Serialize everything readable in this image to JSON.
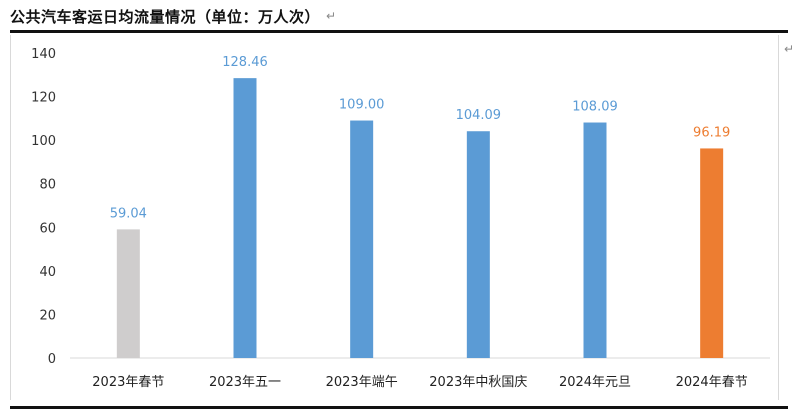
{
  "document": {
    "title": "公共汽车客运日均流量情况（单位：万人次）",
    "paragraph_mark": "↵",
    "side_mark": "↵"
  },
  "chart_data": {
    "type": "bar",
    "title": "",
    "xlabel": "",
    "ylabel": "",
    "ylim": [
      0,
      140
    ],
    "yticks": [
      0,
      20,
      40,
      60,
      80,
      100,
      120,
      140
    ],
    "categories": [
      "2023年春节",
      "2023年五一",
      "2023年端午",
      "2023年中秋国庆",
      "2024年元旦",
      "2024年春节"
    ],
    "values": [
      59.04,
      128.46,
      109.0,
      104.09,
      108.09,
      96.19
    ],
    "value_labels": [
      "59.04",
      "128.46",
      "109.00",
      "104.09",
      "108.09",
      "96.19"
    ],
    "bar_colors": [
      "#cfcdcd",
      "#5b9bd5",
      "#5b9bd5",
      "#5b9bd5",
      "#5b9bd5",
      "#ed7d31"
    ],
    "label_colors": [
      "#5b9bd5",
      "#5b9bd5",
      "#5b9bd5",
      "#5b9bd5",
      "#5b9bd5",
      "#ed7d31"
    ],
    "grid": false,
    "legend": "none"
  }
}
